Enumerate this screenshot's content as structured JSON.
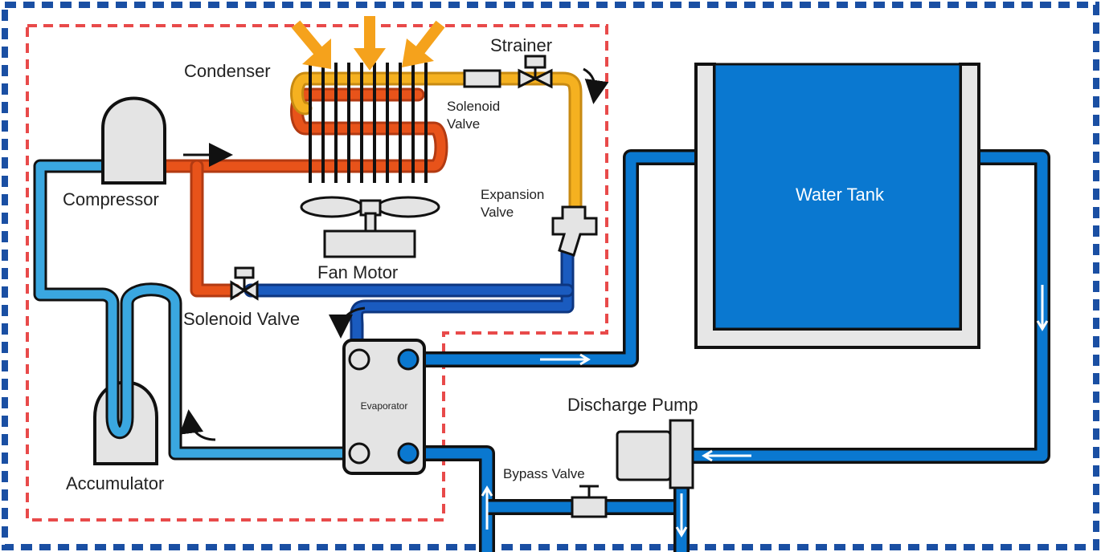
{
  "labels": {
    "condenser": "Condenser",
    "strainer": "Strainer",
    "solenoid_valve_top_line1": "Solenoid",
    "solenoid_valve_top_line2": "Valve",
    "compressor": "Compressor",
    "expansion_valve_line1": "Expansion",
    "expansion_valve_line2": "Valve",
    "fan_motor": "Fan Motor",
    "solenoid_valve_bottom": "Solenoid Valve",
    "water_tank": "Water Tank",
    "evaporator": "Evaporator",
    "discharge_pump": "Discharge Pump",
    "bypass_valve": "Bypass Valve",
    "accumulator": "Accumulator"
  },
  "colors": {
    "outer_boundary": "#1a4fa3",
    "refrigeration_boundary": "#e84a4a",
    "hot_gas_line": "#e8531a",
    "liquid_line": "#f5b120",
    "cold_line_dark": "#1a5bbf",
    "suction_line": "#3aa7e0",
    "water_line": "#0a78d0",
    "tank_fill": "#0a78d0",
    "tank_wall": "#e6e6e6",
    "heat_arrow": "#f5a21c",
    "component_gray": "#e4e4e4"
  }
}
